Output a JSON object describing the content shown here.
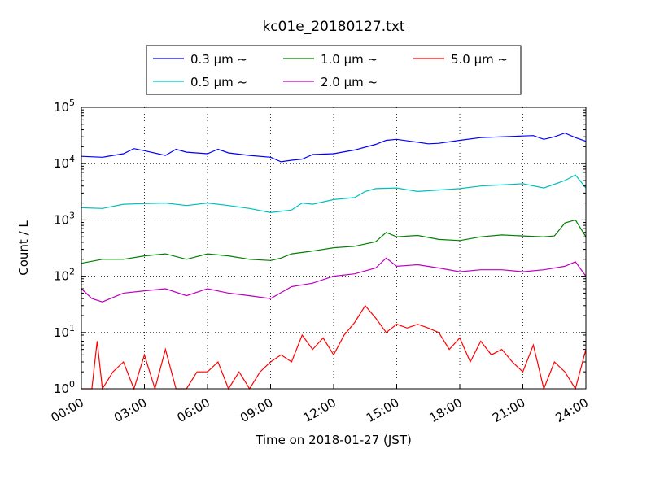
{
  "chart_data": {
    "type": "line",
    "title": "kc01e_20180127.txt",
    "xlabel": "Time on 2018-01-27 (JST)",
    "ylabel": "Count / L",
    "y_scale": "log",
    "ylim": [
      1,
      100000
    ],
    "xlim": [
      "00:00",
      "24:00"
    ],
    "x_tick_labels": [
      "00:00",
      "03:00",
      "06:00",
      "09:00",
      "12:00",
      "15:00",
      "18:00",
      "21:00",
      "24:00"
    ],
    "y_tick_labels": [
      {
        "base": "10",
        "exp": "0"
      },
      {
        "base": "10",
        "exp": "1"
      },
      {
        "base": "10",
        "exp": "2"
      },
      {
        "base": "10",
        "exp": "3"
      },
      {
        "base": "10",
        "exp": "4"
      },
      {
        "base": "10",
        "exp": "5"
      }
    ],
    "grid": true,
    "legend_position": "top-center",
    "series": [
      {
        "name": "0.3 μm ~",
        "color": "#0000ff",
        "points": [
          [
            "00:00",
            13500
          ],
          [
            "01:00",
            13000
          ],
          [
            "02:00",
            15000
          ],
          [
            "02:30",
            18500
          ],
          [
            "03:00",
            17000
          ],
          [
            "04:00",
            14000
          ],
          [
            "04:30",
            18000
          ],
          [
            "05:00",
            16000
          ],
          [
            "06:00",
            15000
          ],
          [
            "06:30",
            18000
          ],
          [
            "07:00",
            15500
          ],
          [
            "08:00",
            14000
          ],
          [
            "09:00",
            13000
          ],
          [
            "09:30",
            10800
          ],
          [
            "10:00",
            11500
          ],
          [
            "10:30",
            12000
          ],
          [
            "11:00",
            14500
          ],
          [
            "12:00",
            15000
          ],
          [
            "13:00",
            17500
          ],
          [
            "14:00",
            22000
          ],
          [
            "14:30",
            26000
          ],
          [
            "15:00",
            27000
          ],
          [
            "16:00",
            24000
          ],
          [
            "16:30",
            22500
          ],
          [
            "17:00",
            23000
          ],
          [
            "18:00",
            26000
          ],
          [
            "19:00",
            29000
          ],
          [
            "20:00",
            30000
          ],
          [
            "21:00",
            31000
          ],
          [
            "21:30",
            31500
          ],
          [
            "22:00",
            27000
          ],
          [
            "22:30",
            30000
          ],
          [
            "23:00",
            35000
          ],
          [
            "23:30",
            29000
          ],
          [
            "24:00",
            25000
          ]
        ]
      },
      {
        "name": "0.5 μm ~",
        "color": "#00bfbf",
        "points": [
          [
            "00:00",
            1650
          ],
          [
            "01:00",
            1600
          ],
          [
            "02:00",
            1900
          ],
          [
            "03:00",
            1950
          ],
          [
            "04:00",
            2000
          ],
          [
            "05:00",
            1800
          ],
          [
            "06:00",
            2000
          ],
          [
            "07:00",
            1800
          ],
          [
            "08:00",
            1600
          ],
          [
            "09:00",
            1350
          ],
          [
            "10:00",
            1500
          ],
          [
            "10:30",
            2000
          ],
          [
            "11:00",
            1900
          ],
          [
            "12:00",
            2300
          ],
          [
            "13:00",
            2500
          ],
          [
            "13:30",
            3200
          ],
          [
            "14:00",
            3600
          ],
          [
            "15:00",
            3700
          ],
          [
            "16:00",
            3200
          ],
          [
            "17:00",
            3400
          ],
          [
            "18:00",
            3600
          ],
          [
            "19:00",
            4000
          ],
          [
            "20:00",
            4200
          ],
          [
            "21:00",
            4400
          ],
          [
            "22:00",
            3700
          ],
          [
            "23:00",
            5000
          ],
          [
            "23:30",
            6300
          ],
          [
            "24:00",
            3700
          ]
        ]
      },
      {
        "name": "1.0 μm ~",
        "color": "#008000",
        "points": [
          [
            "00:00",
            170
          ],
          [
            "01:00",
            200
          ],
          [
            "02:00",
            200
          ],
          [
            "03:00",
            230
          ],
          [
            "04:00",
            250
          ],
          [
            "05:00",
            200
          ],
          [
            "06:00",
            250
          ],
          [
            "07:00",
            230
          ],
          [
            "08:00",
            200
          ],
          [
            "09:00",
            190
          ],
          [
            "09:30",
            210
          ],
          [
            "10:00",
            250
          ],
          [
            "11:00",
            280
          ],
          [
            "12:00",
            320
          ],
          [
            "13:00",
            340
          ],
          [
            "14:00",
            410
          ],
          [
            "14:30",
            600
          ],
          [
            "15:00",
            500
          ],
          [
            "16:00",
            530
          ],
          [
            "17:00",
            450
          ],
          [
            "18:00",
            430
          ],
          [
            "19:00",
            500
          ],
          [
            "20:00",
            540
          ],
          [
            "21:00",
            520
          ],
          [
            "22:00",
            500
          ],
          [
            "22:30",
            520
          ],
          [
            "23:00",
            880
          ],
          [
            "23:30",
            1000
          ],
          [
            "24:00",
            500
          ]
        ]
      },
      {
        "name": "2.0 μm ~",
        "color": "#bf00bf",
        "points": [
          [
            "00:00",
            60
          ],
          [
            "00:30",
            40
          ],
          [
            "01:00",
            35
          ],
          [
            "02:00",
            50
          ],
          [
            "03:00",
            55
          ],
          [
            "04:00",
            60
          ],
          [
            "05:00",
            45
          ],
          [
            "06:00",
            60
          ],
          [
            "07:00",
            50
          ],
          [
            "08:00",
            45
          ],
          [
            "09:00",
            40
          ],
          [
            "10:00",
            65
          ],
          [
            "11:00",
            75
          ],
          [
            "12:00",
            100
          ],
          [
            "13:00",
            110
          ],
          [
            "14:00",
            140
          ],
          [
            "14:30",
            210
          ],
          [
            "15:00",
            150
          ],
          [
            "16:00",
            160
          ],
          [
            "17:00",
            140
          ],
          [
            "18:00",
            120
          ],
          [
            "19:00",
            130
          ],
          [
            "20:00",
            130
          ],
          [
            "21:00",
            120
          ],
          [
            "22:00",
            130
          ],
          [
            "23:00",
            150
          ],
          [
            "23:30",
            180
          ],
          [
            "24:00",
            100
          ]
        ]
      },
      {
        "name": "5.0 μm ~",
        "color": "#ff0000",
        "points": [
          [
            "00:00",
            1
          ],
          [
            "00:30",
            1
          ],
          [
            "00:45",
            7
          ],
          [
            "01:00",
            1
          ],
          [
            "01:30",
            2
          ],
          [
            "02:00",
            3
          ],
          [
            "02:30",
            1
          ],
          [
            "03:00",
            4
          ],
          [
            "03:30",
            1
          ],
          [
            "04:00",
            5
          ],
          [
            "04:30",
            1
          ],
          [
            "05:00",
            1
          ],
          [
            "05:30",
            2
          ],
          [
            "06:00",
            2
          ],
          [
            "06:30",
            3
          ],
          [
            "07:00",
            1
          ],
          [
            "07:30",
            2
          ],
          [
            "08:00",
            1
          ],
          [
            "08:30",
            2
          ],
          [
            "09:00",
            3
          ],
          [
            "09:30",
            4
          ],
          [
            "10:00",
            3
          ],
          [
            "10:30",
            9
          ],
          [
            "11:00",
            5
          ],
          [
            "11:30",
            8
          ],
          [
            "12:00",
            4
          ],
          [
            "12:30",
            9
          ],
          [
            "13:00",
            15
          ],
          [
            "13:30",
            30
          ],
          [
            "14:00",
            18
          ],
          [
            "14:30",
            10
          ],
          [
            "15:00",
            14
          ],
          [
            "15:30",
            12
          ],
          [
            "16:00",
            14
          ],
          [
            "16:30",
            12
          ],
          [
            "17:00",
            10
          ],
          [
            "17:30",
            5
          ],
          [
            "18:00",
            8
          ],
          [
            "18:30",
            3
          ],
          [
            "19:00",
            7
          ],
          [
            "19:30",
            4
          ],
          [
            "20:00",
            5
          ],
          [
            "20:30",
            3
          ],
          [
            "21:00",
            2
          ],
          [
            "21:30",
            6
          ],
          [
            "22:00",
            1
          ],
          [
            "22:30",
            3
          ],
          [
            "23:00",
            2
          ],
          [
            "23:30",
            1
          ],
          [
            "24:00",
            5
          ]
        ]
      }
    ]
  }
}
